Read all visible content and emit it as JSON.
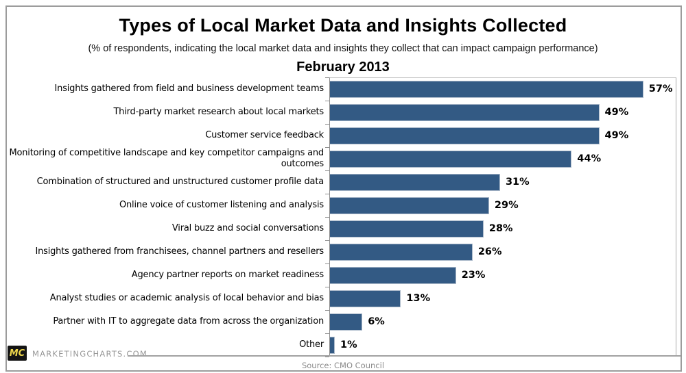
{
  "header": {
    "title": "Types of Local Market Data and Insights Collected",
    "subtitle": "(% of respondents, indicating the local market data and insights they collect that can impact campaign performance)",
    "period": "February 2013"
  },
  "chart_data": {
    "type": "bar",
    "orientation": "horizontal",
    "title": "Types of Local Market Data and Insights Collected",
    "subtitle": "(% of respondents, indicating the local market data and insights they collect that can impact campaign performance)",
    "period_label": "February 2013",
    "categories": [
      "Insights gathered from field and business development teams",
      "Third-party market research about local markets",
      "Customer service feedback",
      "Monitoring of competitive landscape and key competitor campaigns and outcomes",
      "Combination of structured and unstructured customer profile data",
      "Online voice of customer listening and analysis",
      "Viral buzz and social conversations",
      "Insights gathered from franchisees, channel partners and resellers",
      "Agency partner reports on market readiness",
      "Analyst studies or academic analysis of local behavior and bias",
      "Partner with IT to aggregate data from across the organization",
      "Other"
    ],
    "values": [
      57,
      49,
      49,
      44,
      31,
      29,
      28,
      26,
      23,
      13,
      6,
      1
    ],
    "value_suffix": "%",
    "axis_max": 63,
    "bar_color": "#335A84",
    "grid": false,
    "legend": "none",
    "value_labels": "outside-end"
  },
  "footer": {
    "logo_text": "MC",
    "brand": "MARKETINGCHARTS.COM",
    "source": "Source: CMO Council"
  }
}
